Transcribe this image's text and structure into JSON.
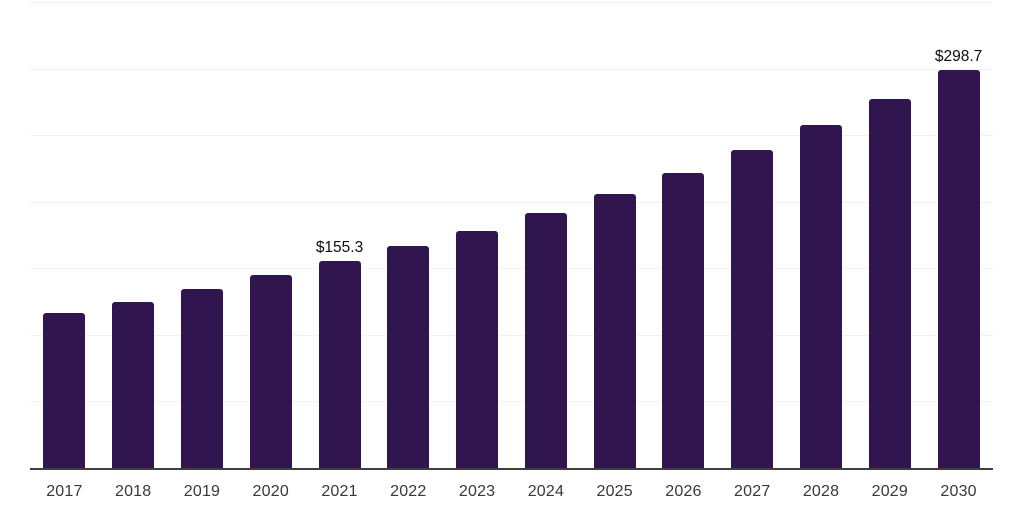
{
  "chart_data": {
    "type": "bar",
    "title": "",
    "xlabel": "",
    "ylabel": "",
    "categories": [
      "2017",
      "2018",
      "2019",
      "2020",
      "2021",
      "2022",
      "2023",
      "2024",
      "2025",
      "2026",
      "2027",
      "2028",
      "2029",
      "2030"
    ],
    "values": [
      116.7,
      124.7,
      134.7,
      144.8,
      155.3,
      166.8,
      178.2,
      191.8,
      206.1,
      221.7,
      238.5,
      257.5,
      277.4,
      298.7
    ],
    "labeled_points": [
      {
        "category": "2021",
        "label": "$155.3"
      },
      {
        "category": "2030",
        "label": "$298.7"
      }
    ],
    "ylim": [
      0,
      350
    ],
    "gridline_values": [
      50,
      100,
      150,
      200,
      250,
      300,
      350
    ],
    "grid": true,
    "legend": "none",
    "colors": {
      "bar": "#31154e",
      "gridline": "#f2f2f2",
      "axis_line": "#3f3f3f",
      "tick_label": "#383838",
      "data_label": "#0d0d0d",
      "background": "#ffffff"
    }
  }
}
